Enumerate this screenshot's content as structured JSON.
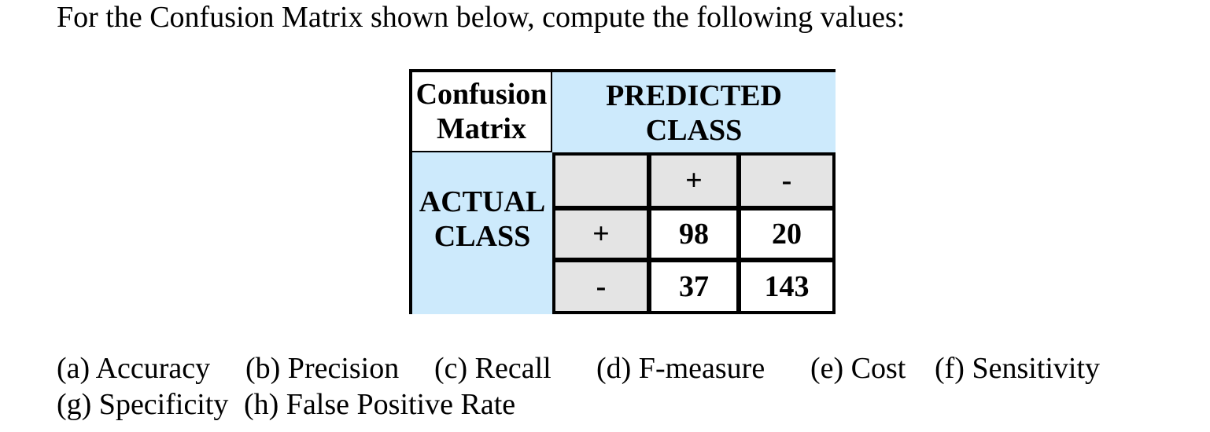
{
  "intro": "For the Confusion Matrix shown below, compute the following values:",
  "matrix": {
    "corner_line1": "Confusion",
    "corner_line2": "Matrix",
    "predicted_line1": "PREDICTED",
    "predicted_line2": "CLASS",
    "actual_line1": "ACTUAL",
    "actual_line2": "CLASS",
    "col_plus": "+",
    "col_minus": "-",
    "row_plus": "+",
    "row_minus": "-",
    "cells": [
      [
        "98",
        "20"
      ],
      [
        "37",
        "143"
      ]
    ]
  },
  "tasks": [
    "(a) Accuracy",
    "(b) Precision",
    "(c) Recall",
    "(d) F-measure",
    "(e) Cost",
    "(f) Sensitivity",
    "(g) Specificity",
    "(h) False Positive Rate"
  ],
  "colors": {
    "header_blue": "#cdeafc",
    "header_gray": "#e4e4e4"
  }
}
